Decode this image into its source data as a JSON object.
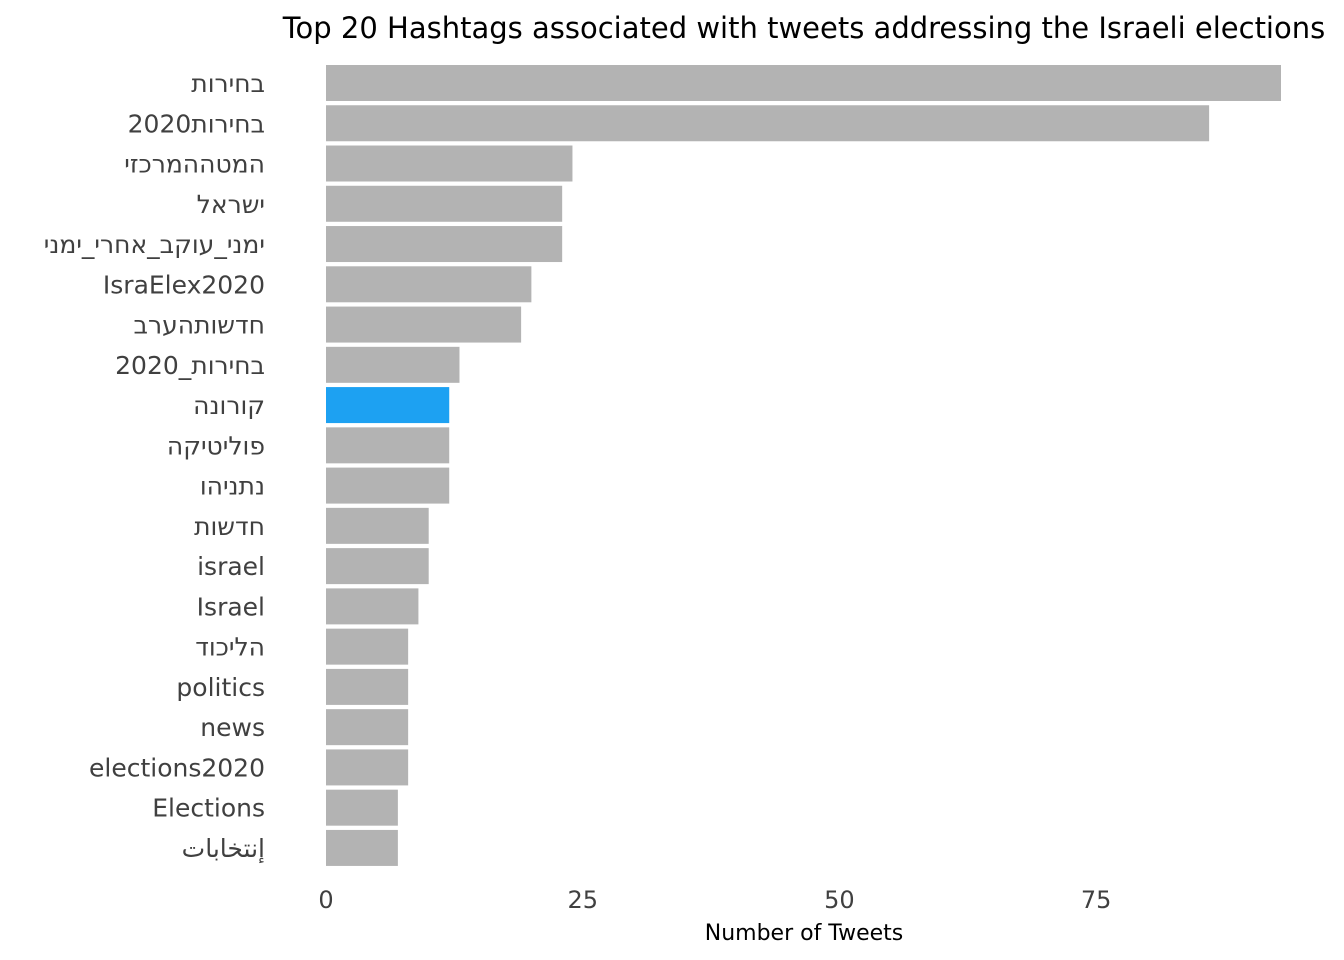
{
  "chart_data": {
    "type": "bar",
    "orientation": "horizontal",
    "title": "Top 20 Hashtags associated with tweets addressing the Israeli elections",
    "xlabel": "Number of Tweets",
    "ylabel": "",
    "xlim": [
      0,
      93
    ],
    "xticks": [
      0,
      25,
      50,
      75
    ],
    "grid": false,
    "legend": "none",
    "colors": {
      "default_bar": "#b3b3b3",
      "highlight_bar": "#1da1f2",
      "category_text": "#404040",
      "tick_text": "#404040",
      "title_text": "#000000"
    },
    "highlight": "קורונה",
    "categories": [
      "בחירות",
      "בחירות2020",
      "המטההמרכזי",
      "ישראל",
      "ימני_עוקב_אחרי_ימני",
      "IsraElex2020",
      "חדשותהערב",
      "בחירות_2020",
      "קורונה",
      "פוליטיקה",
      "נתניהו",
      "חדשות",
      "israel",
      "Israel",
      "הליכוד",
      "politics",
      "news",
      "elections2020",
      "Elections",
      "إنتخابات"
    ],
    "values": [
      93,
      86,
      24,
      23,
      23,
      20,
      19,
      13,
      12,
      12,
      12,
      10,
      10,
      9,
      8,
      8,
      8,
      8,
      7,
      7
    ]
  }
}
